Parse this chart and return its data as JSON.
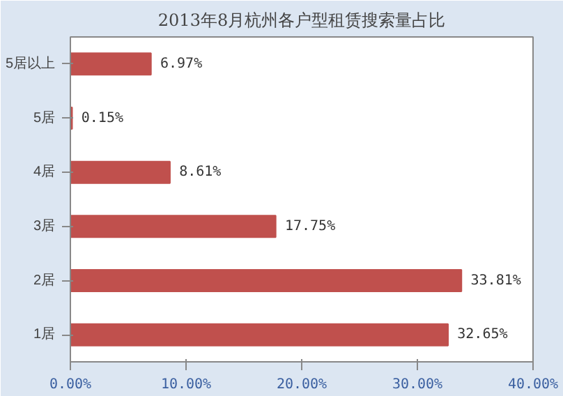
{
  "chart_data": {
    "type": "bar",
    "orientation": "horizontal",
    "title": "2013年8月杭州各户型租赁搜索量占比",
    "categories": [
      "5居以上",
      "5居",
      "4居",
      "3居",
      "2居",
      "1居"
    ],
    "values": [
      6.97,
      0.15,
      8.61,
      17.75,
      33.81,
      32.65
    ],
    "value_labels": [
      "6.97%",
      "0.15%",
      "8.61%",
      "17.75%",
      "33.81%",
      "32.65%"
    ],
    "color": "#c0504d",
    "xlim": [
      0,
      40
    ],
    "xticks": [
      {
        "value": 0,
        "label": "0.00%"
      },
      {
        "value": 10,
        "label": "10.00%"
      },
      {
        "value": 20,
        "label": "20.00%"
      },
      {
        "value": 30,
        "label": "30.00%"
      },
      {
        "value": 40,
        "label": "40.00%"
      }
    ],
    "grid": false
  }
}
